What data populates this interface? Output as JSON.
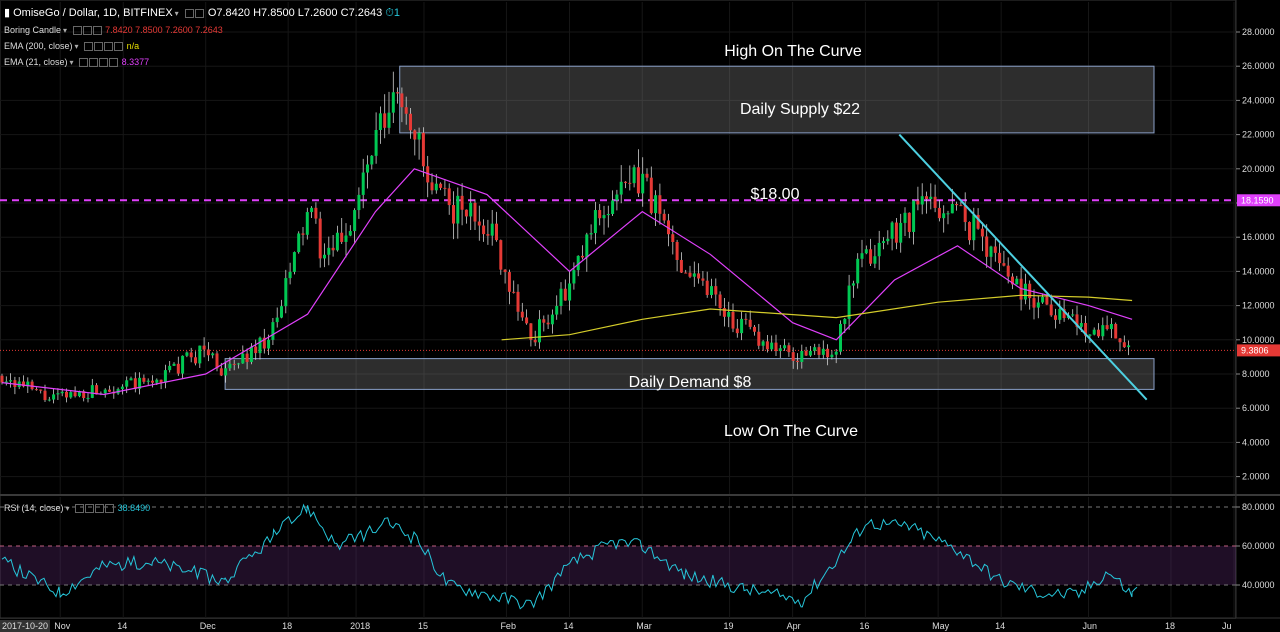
{
  "header": {
    "symbol_title": "OmiseGo / Dollar, 1D, BITFINEX",
    "ohlc": [
      {
        "label": "O",
        "value": "7.8420"
      },
      {
        "label": "H",
        "value": "7.8500"
      },
      {
        "label": "L",
        "value": "7.2600"
      },
      {
        "label": "C",
        "value": "7.2643"
      }
    ],
    "count_badge": "1",
    "icons": [
      "eye-icon",
      "settings-icon",
      "alarm-icon"
    ]
  },
  "indicators": [
    {
      "name": "Boring Candle",
      "values": [
        "7.8420",
        "7.8500",
        "7.2600",
        "7.2643"
      ],
      "color": "#e53935"
    },
    {
      "name": "EMA (200, close)",
      "values": [
        "n/a"
      ],
      "color": "#e8e000"
    },
    {
      "name": "EMA (21, close)",
      "values": [
        "8.3377"
      ],
      "color": "#e040fb"
    }
  ],
  "rsi": {
    "label": "RSI (14, close)",
    "value": "38.8490",
    "color": "#26c6da"
  },
  "colors": {
    "up": "#00c853",
    "down": "#e53935",
    "ema21": "#e040fb",
    "ema200": "#d4cc2a",
    "rsi": "#26c6da",
    "trendline": "#4dd0e1",
    "background": "#000000",
    "price_level": "#e040fb"
  },
  "annotations": {
    "high_curve": "High On The Curve",
    "supply": "Daily Supply $22",
    "level_18": "$18.00",
    "demand": "Daily Demand $8",
    "low_curve": "Low On The Curve"
  },
  "price_badges": {
    "level": "18.1590",
    "last": "9.3806"
  },
  "chart_data": [
    {
      "type": "candlestick",
      "title": "OmiseGo / Dollar, 1D, BITFINEX",
      "y_ticks": [
        "28.0000",
        "26.0000",
        "24.0000",
        "22.0000",
        "20.0000",
        "18.0000",
        "16.0000",
        "14.0000",
        "12.0000",
        "10.0000",
        "8.0000",
        "6.0000",
        "4.0000",
        "2.0000"
      ],
      "x_ticks": [
        "2017-10-20",
        "Nov",
        "14",
        "Dec",
        "18",
        "2018",
        "15",
        "Feb",
        "14",
        "Mar",
        "19",
        "Apr",
        "16",
        "May",
        "14",
        "Jun",
        "18",
        "Ju"
      ],
      "ylim": [
        1,
        29
      ],
      "series": [
        {
          "name": "Boring Candle",
          "kind": "ohlc",
          "close_path": [
            [
              "2017-10-20",
              7.9
            ],
            [
              "2017-10-30",
              6.5
            ],
            [
              "2017-11-10",
              7.2
            ],
            [
              "2017-11-20",
              7.5
            ],
            [
              "2017-12-01",
              9.5
            ],
            [
              "2017-12-05",
              8.0
            ],
            [
              "2017-12-15",
              10.5
            ],
            [
              "2017-12-22",
              17.5
            ],
            [
              "2017-12-26",
              14.5
            ],
            [
              "2017-12-31",
              17.0
            ],
            [
              "2018-01-05",
              21.5
            ],
            [
              "2018-01-10",
              24.5
            ],
            [
              "2018-01-13",
              22.5
            ],
            [
              "2018-01-16",
              18.5
            ],
            [
              "2018-01-23",
              17.5
            ],
            [
              "2018-01-28",
              17.0
            ],
            [
              "2018-02-06",
              10.0
            ],
            [
              "2018-02-14",
              13.0
            ],
            [
              "2018-02-20",
              17.5
            ],
            [
              "2018-03-01",
              19.5
            ],
            [
              "2018-03-08",
              15.0
            ],
            [
              "2018-03-15",
              13.0
            ],
            [
              "2018-03-20",
              11.0
            ],
            [
              "2018-04-01",
              9.0
            ],
            [
              "2018-04-10",
              9.5
            ],
            [
              "2018-04-14",
              14.0
            ],
            [
              "2018-04-22",
              16.5
            ],
            [
              "2018-04-28",
              18.0
            ],
            [
              "2018-05-05",
              17.5
            ],
            [
              "2018-05-10",
              16.0
            ],
            [
              "2018-05-18",
              13.0
            ],
            [
              "2018-05-24",
              12.0
            ],
            [
              "2018-06-01",
              10.5
            ],
            [
              "2018-06-05",
              11.0
            ],
            [
              "2018-06-10",
              9.38
            ]
          ]
        },
        {
          "name": "EMA (21, close)",
          "values": [
            [
              "2017-10-20",
              7.5
            ],
            [
              "2017-11-10",
              6.8
            ],
            [
              "2017-12-01",
              8.0
            ],
            [
              "2017-12-22",
              11.5
            ],
            [
              "2018-01-05",
              17.5
            ],
            [
              "2018-01-13",
              20.0
            ],
            [
              "2018-01-28",
              18.5
            ],
            [
              "2018-02-14",
              14.0
            ],
            [
              "2018-03-01",
              17.5
            ],
            [
              "2018-03-15",
              15.0
            ],
            [
              "2018-04-01",
              11.0
            ],
            [
              "2018-04-10",
              10.0
            ],
            [
              "2018-04-22",
              13.5
            ],
            [
              "2018-05-05",
              15.5
            ],
            [
              "2018-05-18",
              13.0
            ],
            [
              "2018-06-01",
              12.0
            ],
            [
              "2018-06-10",
              11.2
            ]
          ]
        },
        {
          "name": "EMA (200, close)",
          "values": [
            [
              "2018-01-31",
              10.0
            ],
            [
              "2018-02-14",
              10.3
            ],
            [
              "2018-03-01",
              11.2
            ],
            [
              "2018-03-15",
              11.8
            ],
            [
              "2018-04-10",
              11.3
            ],
            [
              "2018-05-01",
              12.2
            ],
            [
              "2018-05-18",
              12.6
            ],
            [
              "2018-06-01",
              12.5
            ],
            [
              "2018-06-10",
              12.3
            ]
          ]
        }
      ],
      "horizontal_levels": [
        {
          "price": 18.159,
          "label": "$18.00",
          "style": "dashed"
        },
        {
          "price": 9.3806,
          "style": "dotted"
        }
      ],
      "zones": [
        {
          "label": "Daily Supply $22",
          "from": "2018-01-10",
          "price_low": 22.1,
          "price_high": 26.0
        },
        {
          "label": "Daily Demand $8",
          "from": "2017-12-05",
          "price_low": 7.1,
          "price_high": 8.9
        }
      ],
      "trendlines": [
        {
          "from": [
            "2018-04-23",
            22.0
          ],
          "to": [
            "2018-06-13",
            6.5
          ]
        }
      ]
    },
    {
      "type": "line",
      "title": "RSI (14, close)",
      "y_ticks": [
        "80.0000",
        "60.0000",
        "40.0000"
      ],
      "ylim": [
        25,
        85
      ],
      "band": [
        40,
        60
      ],
      "series": [
        {
          "name": "RSI (14, close)",
          "values": [
            [
              "2017-10-20",
              52
            ],
            [
              "2017-11-01",
              36
            ],
            [
              "2017-11-10",
              50
            ],
            [
              "2017-11-20",
              52
            ],
            [
              "2017-12-05",
              42
            ],
            [
              "2017-12-15",
              65
            ],
            [
              "2017-12-22",
              80
            ],
            [
              "2017-12-28",
              60
            ],
            [
              "2018-01-08",
              72
            ],
            [
              "2018-01-14",
              62
            ],
            [
              "2018-01-20",
              40
            ],
            [
              "2018-02-06",
              30
            ],
            [
              "2018-02-15",
              52
            ],
            [
              "2018-02-23",
              62
            ],
            [
              "2018-03-01",
              60
            ],
            [
              "2018-03-10",
              45
            ],
            [
              "2018-03-22",
              38
            ],
            [
              "2018-04-03",
              32
            ],
            [
              "2018-04-13",
              62
            ],
            [
              "2018-04-16",
              72
            ],
            [
              "2018-04-25",
              70
            ],
            [
              "2018-05-05",
              58
            ],
            [
              "2018-05-14",
              42
            ],
            [
              "2018-05-22",
              36
            ],
            [
              "2018-05-30",
              35
            ],
            [
              "2018-06-05",
              47
            ],
            [
              "2018-06-10",
              35
            ],
            [
              "2018-06-11",
              38.85
            ]
          ]
        }
      ]
    }
  ]
}
